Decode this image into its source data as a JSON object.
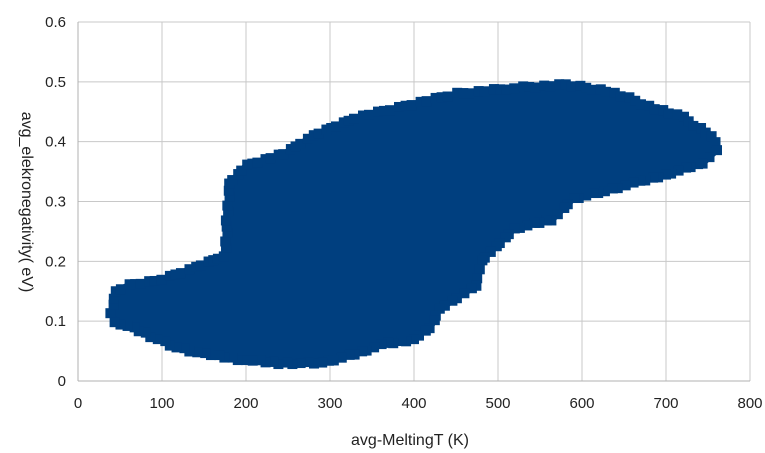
{
  "chart_data": {
    "type": "scatter",
    "title": "",
    "xlabel": "avg-MeltingT (K)",
    "ylabel": "avg_elekronegativity( eV)",
    "xlim": [
      0,
      800
    ],
    "ylim": [
      0,
      0.6
    ],
    "x_ticks": [
      "0",
      "100",
      "200",
      "300",
      "400",
      "500",
      "600",
      "700",
      "800"
    ],
    "y_ticks": [
      "0",
      "0.1",
      "0.2",
      "0.3",
      "0.4",
      "0.5",
      "0.6"
    ],
    "grid": true,
    "legend": "none",
    "series": [
      {
        "color": "#003f7f",
        "marker": "square",
        "points_note": "dense cloud; sampled boundary of the filled point region",
        "boundary": [
          [
            40,
            0.115
          ],
          [
            45,
            0.15
          ],
          [
            60,
            0.16
          ],
          [
            100,
            0.17
          ],
          [
            140,
            0.19
          ],
          [
            175,
            0.21
          ],
          [
            180,
            0.33
          ],
          [
            200,
            0.36
          ],
          [
            245,
            0.38
          ],
          [
            280,
            0.41
          ],
          [
            330,
            0.44
          ],
          [
            390,
            0.46
          ],
          [
            450,
            0.48
          ],
          [
            520,
            0.49
          ],
          [
            580,
            0.495
          ],
          [
            630,
            0.485
          ],
          [
            680,
            0.46
          ],
          [
            720,
            0.44
          ],
          [
            755,
            0.41
          ],
          [
            760,
            0.385
          ],
          [
            745,
            0.365
          ],
          [
            700,
            0.345
          ],
          [
            660,
            0.33
          ],
          [
            620,
            0.315
          ],
          [
            590,
            0.305
          ],
          [
            565,
            0.27
          ],
          [
            520,
            0.255
          ],
          [
            480,
            0.2
          ],
          [
            475,
            0.16
          ],
          [
            430,
            0.12
          ],
          [
            420,
            0.09
          ],
          [
            400,
            0.07
          ],
          [
            360,
            0.06
          ],
          [
            330,
            0.045
          ],
          [
            290,
            0.03
          ],
          [
            240,
            0.03
          ],
          [
            200,
            0.035
          ],
          [
            150,
            0.045
          ],
          [
            110,
            0.06
          ],
          [
            80,
            0.08
          ],
          [
            45,
            0.1
          ]
        ]
      }
    ]
  }
}
